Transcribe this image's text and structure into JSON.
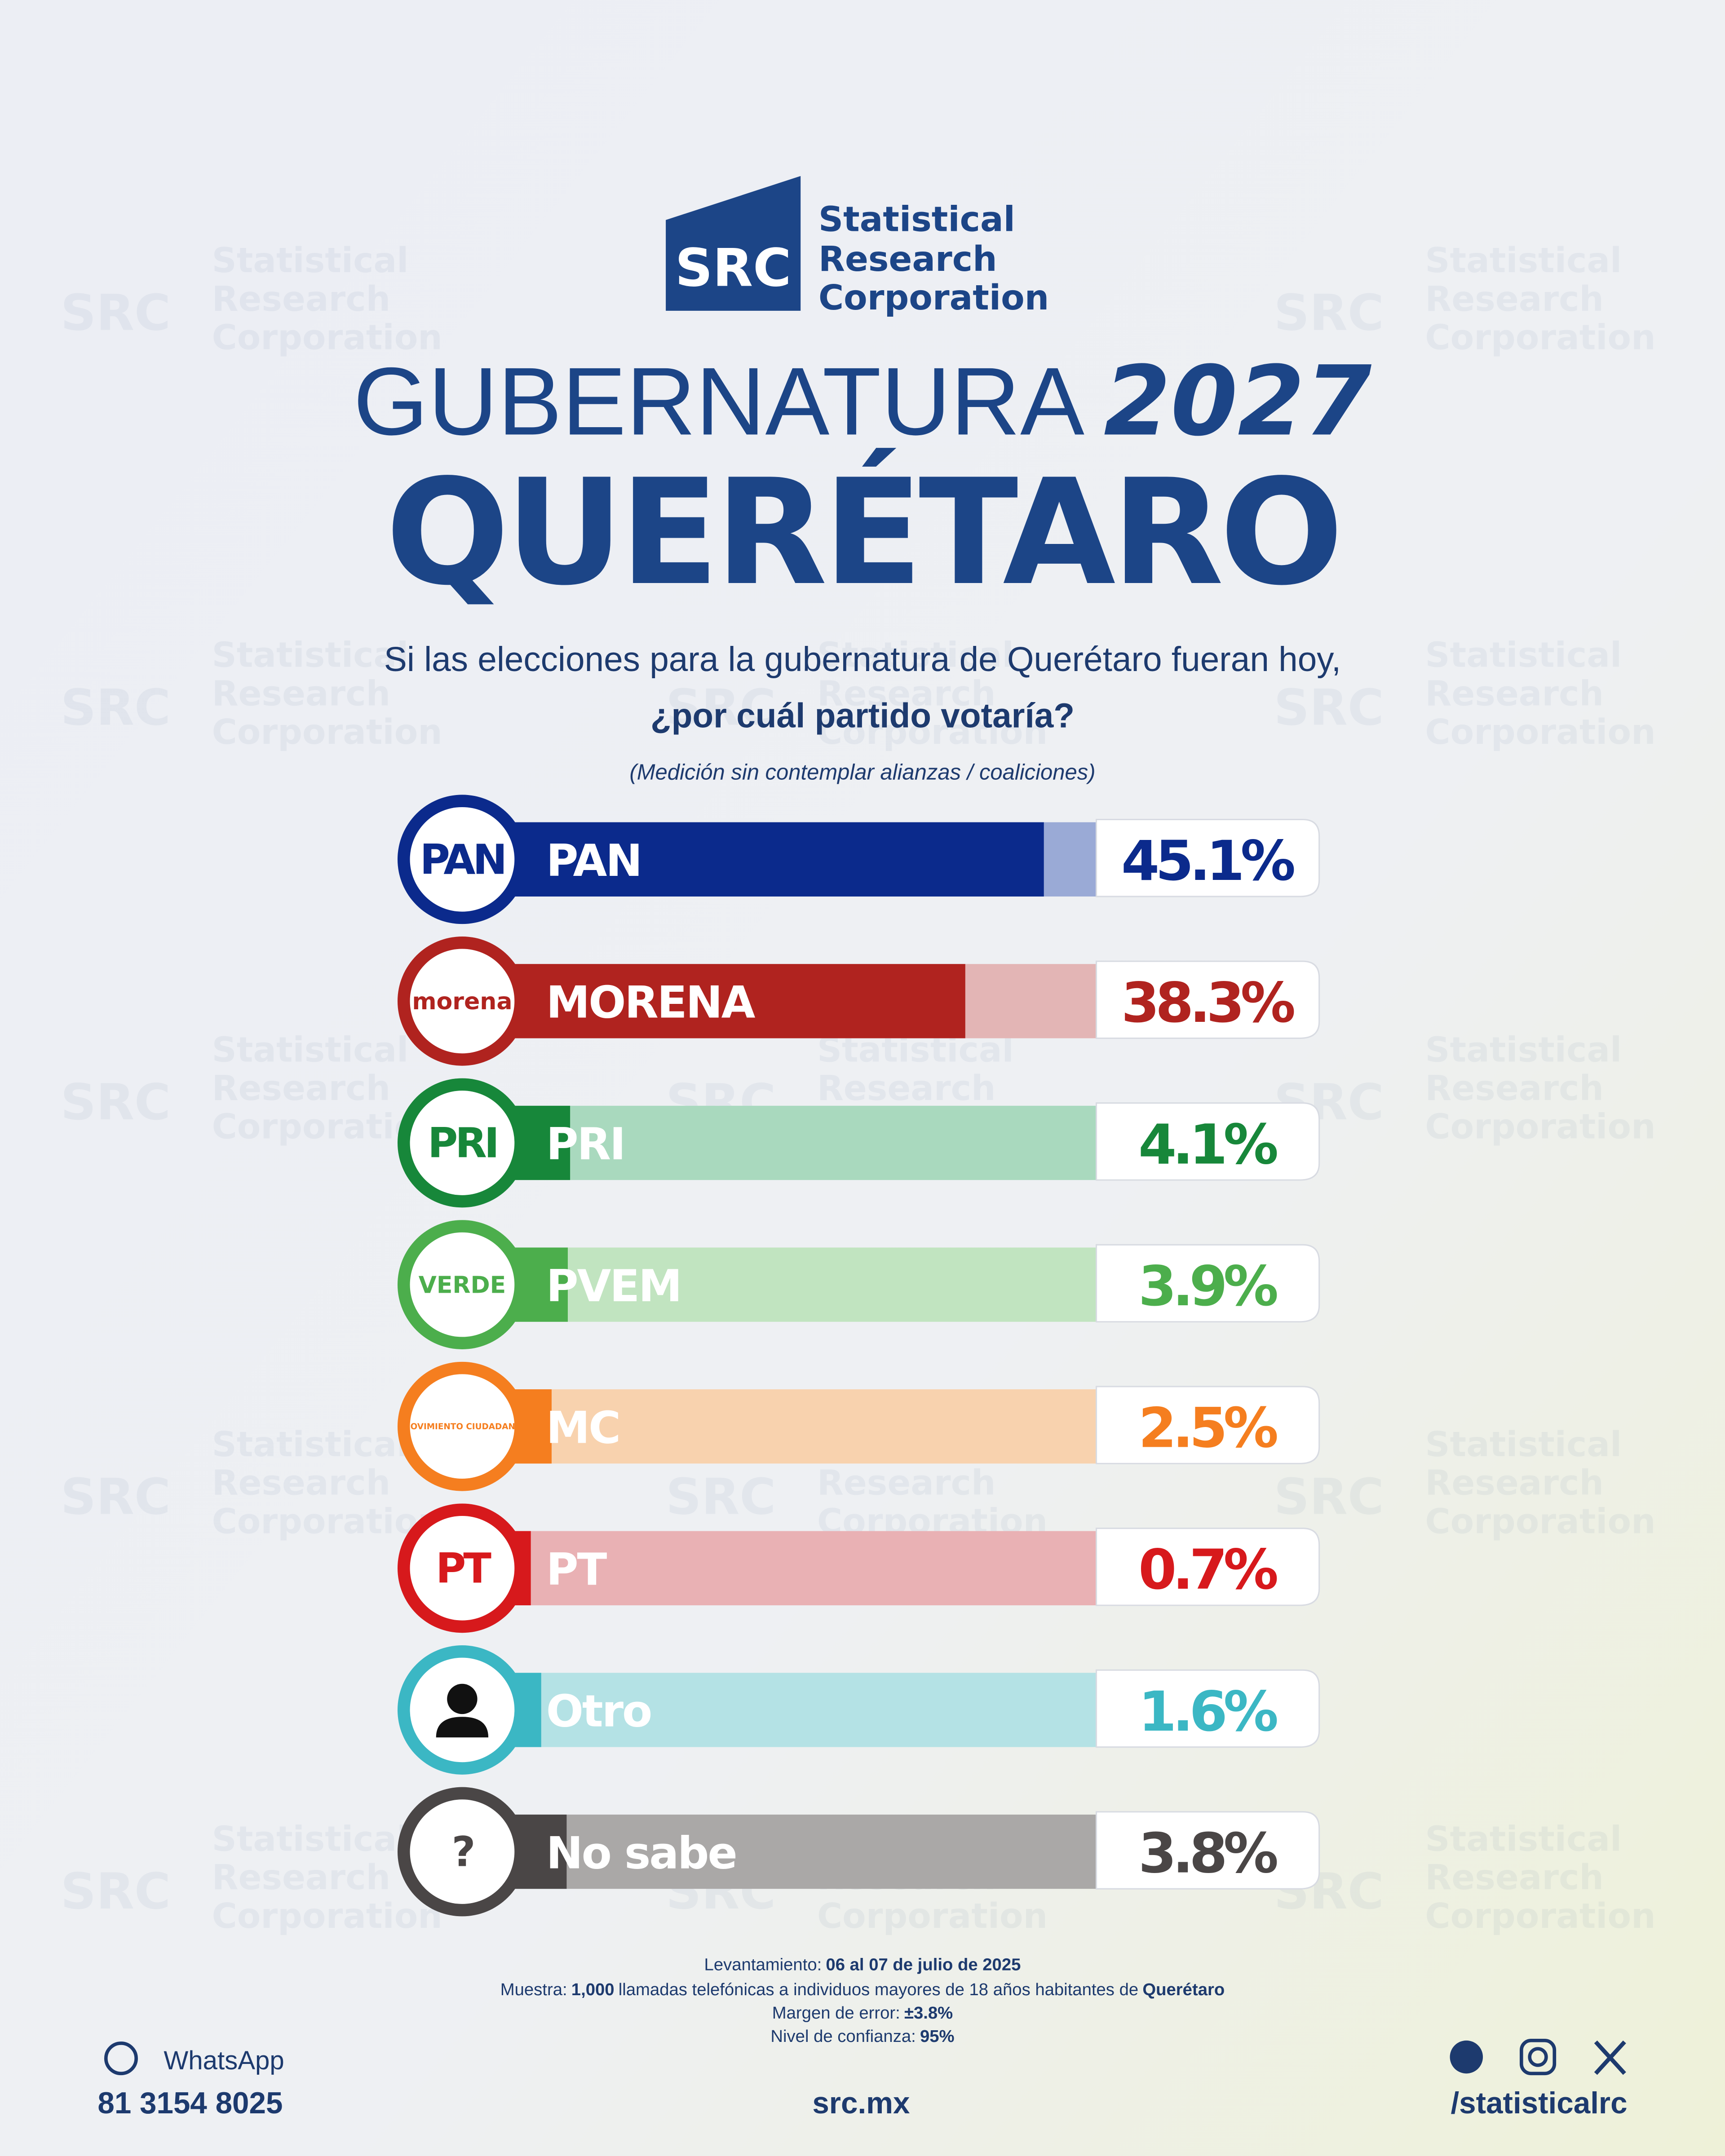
{
  "brand": {
    "mark": "SRC",
    "line1": "Statistical",
    "line2": "Research",
    "line3": "Corporation"
  },
  "chart_data": {
    "type": "bar",
    "title": "GUBERNATURA",
    "title_year": "2027",
    "subtitle": "QUERÉTARO",
    "question_line1": "Si las elecciones para la gubernatura de Querétaro fueran hoy,",
    "question_line2": "¿por cuál partido votaría?",
    "note": "(Medición sin contemplar alianzas / coaliciones)",
    "categories": [
      "PAN",
      "MORENA",
      "PRI",
      "PVEM",
      "MC",
      "PT",
      "Otro",
      "No sabe"
    ],
    "values": [
      45.1,
      38.3,
      4.1,
      3.9,
      2.5,
      0.7,
      1.6,
      3.8
    ],
    "value_labels": [
      "45.1%",
      "38.3%",
      "4.1%",
      "3.9%",
      "2.5%",
      "0.7%",
      "1.6%",
      "3.8%"
    ],
    "colors": [
      "#0b2a8c",
      "#b0231f",
      "#17873a",
      "#4cae4c",
      "#f57e1f",
      "#d7191c",
      "#3bb7c4",
      "#4a4646"
    ],
    "track_colors": [
      "#9aaad6",
      "#e3b5b5",
      "#a9d9be",
      "#c1e4c0",
      "#f8d2ae",
      "#e9b1b4",
      "#b4e2e5",
      "#aaa8a7"
    ],
    "logo_labels": [
      "PAN",
      "morena",
      "PRI",
      "VERDE",
      "MOVIMIENTO CIUDADANO",
      "PT",
      null,
      "?"
    ]
  },
  "methodology": {
    "l1_label": "Levantamiento:",
    "l1_value": "06 al 07 de julio de 2025",
    "l2_label": "Muestra:",
    "l2_value": "1,000",
    "l2_text": "llamadas telefónicas a individuos mayores de 18 años habitantes de",
    "l2_place": "Querétaro",
    "l3_label": "Margen de error:",
    "l3_value": "±3.8%",
    "l4_label": "Nivel de confianza:",
    "l4_value": "95%"
  },
  "footer": {
    "whatsapp": "WhatsApp",
    "phone": "81 3154 8025",
    "site": "src.mx",
    "handle": "/statisticalrc"
  }
}
